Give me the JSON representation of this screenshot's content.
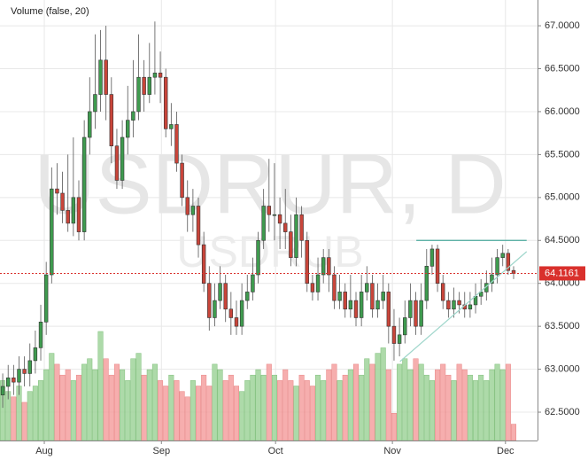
{
  "chart_data": {
    "type": "candlestick",
    "title": "Volume (false, 20)",
    "watermark": "USDRUR, D",
    "watermark_sub": "USDRUB",
    "open": [
      62.7,
      62.8,
      62.9,
      62.85,
      63.0,
      62.95,
      63.1,
      63.25,
      63.55,
      64.1,
      65.1,
      65.05,
      64.85,
      64.7,
      65.0,
      64.6,
      65.7,
      66.0,
      66.2,
      66.6,
      66.2,
      65.6,
      65.2,
      65.7,
      65.9,
      66.0,
      66.4,
      66.2,
      66.4,
      66.45,
      66.4,
      65.8,
      65.85,
      65.4,
      65.0,
      64.8,
      64.9,
      64.45,
      64.0,
      63.6,
      63.8,
      64.0,
      63.7,
      63.6,
      63.5,
      63.8,
      63.9,
      64.1,
      64.5,
      64.9,
      64.8,
      64.8,
      64.7,
      64.6,
      64.3,
      64.8,
      64.5,
      64.0,
      63.9,
      64.1,
      64.3,
      64.1,
      63.8,
      63.9,
      63.7,
      63.8,
      63.6,
      63.9,
      64.0,
      63.7,
      63.8,
      63.9,
      63.5,
      63.3,
      63.4,
      63.6,
      63.8,
      63.5,
      63.8,
      64.2,
      64.4,
      64.0,
      63.8,
      63.7,
      63.8,
      63.75,
      63.7,
      63.75,
      63.85,
      63.9,
      64.0,
      64.1,
      64.3,
      64.35,
      64.15
    ],
    "high": [
      62.95,
      63.05,
      63.05,
      63.15,
      63.15,
      63.3,
      63.45,
      63.75,
      64.25,
      65.35,
      65.4,
      65.3,
      65.5,
      65.7,
      65.2,
      65.9,
      66.4,
      66.9,
      66.95,
      67.0,
      66.4,
      65.8,
      65.9,
      66.3,
      66.6,
      66.9,
      66.6,
      66.8,
      67.05,
      66.7,
      66.5,
      66.1,
      66.0,
      65.5,
      65.2,
      65.1,
      65.0,
      64.6,
      64.2,
      64.0,
      64.2,
      64.1,
      63.9,
      63.8,
      64.0,
      64.1,
      64.3,
      64.6,
      65.1,
      65.45,
      65.4,
      65.0,
      65.1,
      64.8,
      65.0,
      64.9,
      64.6,
      64.1,
      64.3,
      64.4,
      64.4,
      64.2,
      64.1,
      64.0,
      64.1,
      63.9,
      64.1,
      64.2,
      64.1,
      64.0,
      64.1,
      64.0,
      63.7,
      63.6,
      63.8,
      64.0,
      63.9,
      64.0,
      64.4,
      64.45,
      64.45,
      64.1,
      63.9,
      63.95,
      63.9,
      63.9,
      63.9,
      64.0,
      64.05,
      64.15,
      64.3,
      64.4,
      64.45,
      64.4,
      64.2
    ],
    "low": [
      62.55,
      62.65,
      62.7,
      62.7,
      62.8,
      62.8,
      62.95,
      63.1,
      63.4,
      64.0,
      64.8,
      64.7,
      64.6,
      64.55,
      64.5,
      64.5,
      65.5,
      65.8,
      66.0,
      65.9,
      65.4,
      65.1,
      65.1,
      65.5,
      65.7,
      65.9,
      66.0,
      66.1,
      66.2,
      66.1,
      65.7,
      65.6,
      65.3,
      64.9,
      64.6,
      64.6,
      64.3,
      63.9,
      63.45,
      63.5,
      63.7,
      63.55,
      63.4,
      63.4,
      63.4,
      63.7,
      63.8,
      64.0,
      64.4,
      64.6,
      64.5,
      64.4,
      64.4,
      64.2,
      64.2,
      64.3,
      63.9,
      63.8,
      63.8,
      64.0,
      63.9,
      63.7,
      63.7,
      63.6,
      63.6,
      63.5,
      63.5,
      63.8,
      63.6,
      63.6,
      63.7,
      63.3,
      63.1,
      63.15,
      63.3,
      63.5,
      63.4,
      63.4,
      63.7,
      64.1,
      63.9,
      63.7,
      63.6,
      63.6,
      63.65,
      63.6,
      63.6,
      63.65,
      63.75,
      63.8,
      63.9,
      64.0,
      64.2,
      64.1,
      64.05
    ],
    "close": [
      62.8,
      62.9,
      62.85,
      63.0,
      62.95,
      63.1,
      63.25,
      63.55,
      64.1,
      65.1,
      65.05,
      64.85,
      64.7,
      65.0,
      64.6,
      65.7,
      66.0,
      66.2,
      66.6,
      66.2,
      65.6,
      65.2,
      65.7,
      65.9,
      66.0,
      66.4,
      66.2,
      66.4,
      66.45,
      66.4,
      65.8,
      65.85,
      65.4,
      65.0,
      64.8,
      64.9,
      64.45,
      64.0,
      63.6,
      63.8,
      64.0,
      63.7,
      63.6,
      63.5,
      63.8,
      63.9,
      64.1,
      64.5,
      64.9,
      64.8,
      64.8,
      64.7,
      64.6,
      64.3,
      64.8,
      64.5,
      64.0,
      63.9,
      64.1,
      64.3,
      64.1,
      63.8,
      63.9,
      63.7,
      63.8,
      63.6,
      63.9,
      64.0,
      63.7,
      63.8,
      63.9,
      63.5,
      63.3,
      63.4,
      63.6,
      63.8,
      63.5,
      63.8,
      64.2,
      64.4,
      64.0,
      63.8,
      63.7,
      63.8,
      63.75,
      63.7,
      63.75,
      63.85,
      63.9,
      64.0,
      64.1,
      64.3,
      64.35,
      64.15,
      64.1161
    ],
    "volume": [
      55,
      45,
      40,
      50,
      35,
      45,
      50,
      55,
      65,
      80,
      70,
      60,
      65,
      55,
      60,
      70,
      75,
      65,
      100,
      75,
      60,
      70,
      65,
      55,
      75,
      80,
      60,
      65,
      70,
      55,
      50,
      60,
      55,
      45,
      40,
      55,
      50,
      60,
      50,
      70,
      65,
      55,
      60,
      50,
      45,
      55,
      60,
      65,
      60,
      70,
      60,
      55,
      65,
      55,
      50,
      60,
      55,
      50,
      60,
      55,
      65,
      70,
      55,
      60,
      65,
      70,
      60,
      75,
      70,
      80,
      85,
      65,
      25,
      70,
      75,
      65,
      75,
      70,
      60,
      55,
      65,
      70,
      60,
      55,
      70,
      65,
      60,
      55,
      60,
      55,
      65,
      70,
      65,
      70,
      15
    ],
    "volume_ylim": [
      0,
      100
    ],
    "up_color": "#3f9b4f",
    "down_color": "#c9453a",
    "volume_up_color": "#9fd49a",
    "volume_down_color": "#f5a0a0",
    "xlim": [
      -0.5,
      98.4
    ],
    "xticks": [
      {
        "value": 7.65,
        "label": "Aug"
      },
      {
        "value": 29.2,
        "label": "Sep"
      },
      {
        "value": 50.2,
        "label": "Oct"
      },
      {
        "value": 71.7,
        "label": "Nov"
      },
      {
        "value": 92.5,
        "label": "Dec"
      }
    ],
    "ylim": [
      62.17,
      67.3
    ],
    "yticks": [
      {
        "value": 62.5,
        "label": "62.5000"
      },
      {
        "value": 63.0,
        "label": "63.0000"
      },
      {
        "value": 63.5,
        "label": "63.5000"
      },
      {
        "value": 64.0,
        "label": "64.0000"
      },
      {
        "value": 64.5,
        "label": "64.5000"
      },
      {
        "value": 65.0,
        "label": "65.0000"
      },
      {
        "value": 65.5,
        "label": "65.5000"
      },
      {
        "value": 66.0,
        "label": "66.0000"
      },
      {
        "value": 66.5,
        "label": "66.5000"
      },
      {
        "value": 67.0,
        "label": "67.0000"
      }
    ],
    "grid": true,
    "last_price_color": "#d9302c",
    "lines": [
      {
        "x": [
          76.1,
          96.4
        ],
        "y": [
          64.5,
          64.5
        ],
        "color": "#4aa89c"
      },
      {
        "x": [
          73.1,
          96.4
        ],
        "y": [
          63.09,
          64.37
        ],
        "color": "#9fd6cb"
      }
    ]
  }
}
